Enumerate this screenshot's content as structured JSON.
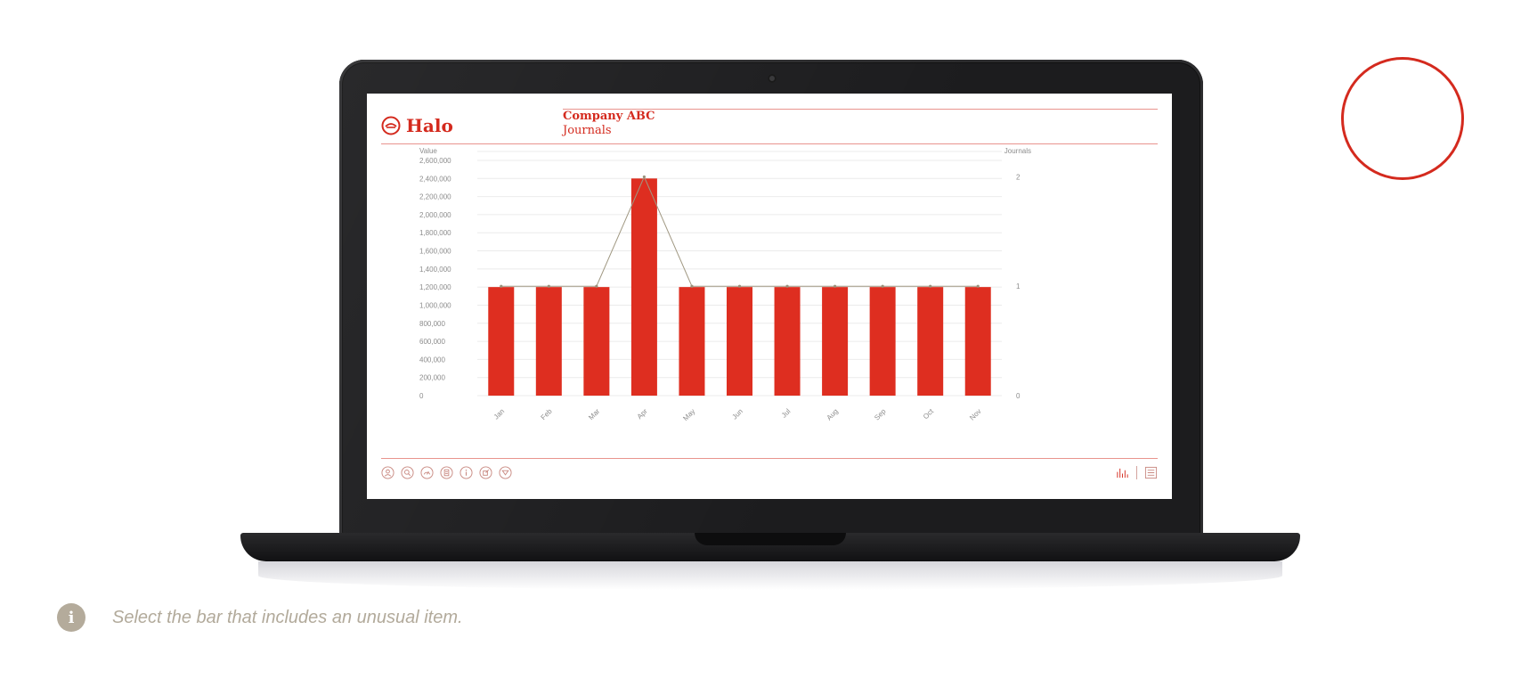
{
  "app": {
    "logo_text": "Halo",
    "company": "Company ABC",
    "section": "Journals"
  },
  "colors": {
    "accent": "#d42a1e",
    "bar": "#de2e20",
    "line": "#a09882",
    "muted_text": "#b2aa9b"
  },
  "footer": {
    "left_icons": [
      "user-circle-icon",
      "search-circle-icon",
      "gauge-circle-icon",
      "document-circle-icon",
      "info-circle-icon",
      "edit-circle-icon",
      "filter-circle-icon"
    ],
    "right_icons": [
      "bar-chart-icon",
      "list-view-icon"
    ]
  },
  "instruction": {
    "text": "Select the bar that includes an unusual item."
  },
  "chart_data": {
    "type": "bar",
    "categories": [
      "Jan",
      "Feb",
      "Mar",
      "Apr",
      "May",
      "Jun",
      "Jul",
      "Aug",
      "Sep",
      "Oct",
      "Nov"
    ],
    "series": [
      {
        "name": "Value",
        "type": "bar",
        "axis": "left",
        "values": [
          1200000,
          1200000,
          1200000,
          2400000,
          1200000,
          1200000,
          1200000,
          1200000,
          1200000,
          1200000,
          1200000
        ]
      },
      {
        "name": "Journals",
        "type": "line",
        "axis": "right",
        "values": [
          1,
          1,
          1,
          2,
          1,
          1,
          1,
          1,
          1,
          1,
          1
        ]
      }
    ],
    "ylabel": "Value",
    "y2label": "Journals",
    "ylim": [
      0,
      2600000
    ],
    "yticks": [
      0,
      200000,
      400000,
      600000,
      800000,
      1000000,
      1200000,
      1400000,
      1600000,
      1800000,
      2000000,
      2200000,
      2400000,
      2600000
    ],
    "ytick_labels": [
      "0",
      "200,000",
      "400,000",
      "600,000",
      "800,000",
      "1,000,000",
      "1,200,000",
      "1,400,000",
      "1,600,000",
      "1,800,000",
      "2,000,000",
      "2,200,000",
      "2,400,000",
      "2,600,000"
    ],
    "y2lim": [
      0,
      2.15
    ],
    "y2ticks": [
      0,
      1,
      2
    ],
    "y2tick_labels": [
      "0",
      "1",
      "2"
    ],
    "grid": true
  }
}
